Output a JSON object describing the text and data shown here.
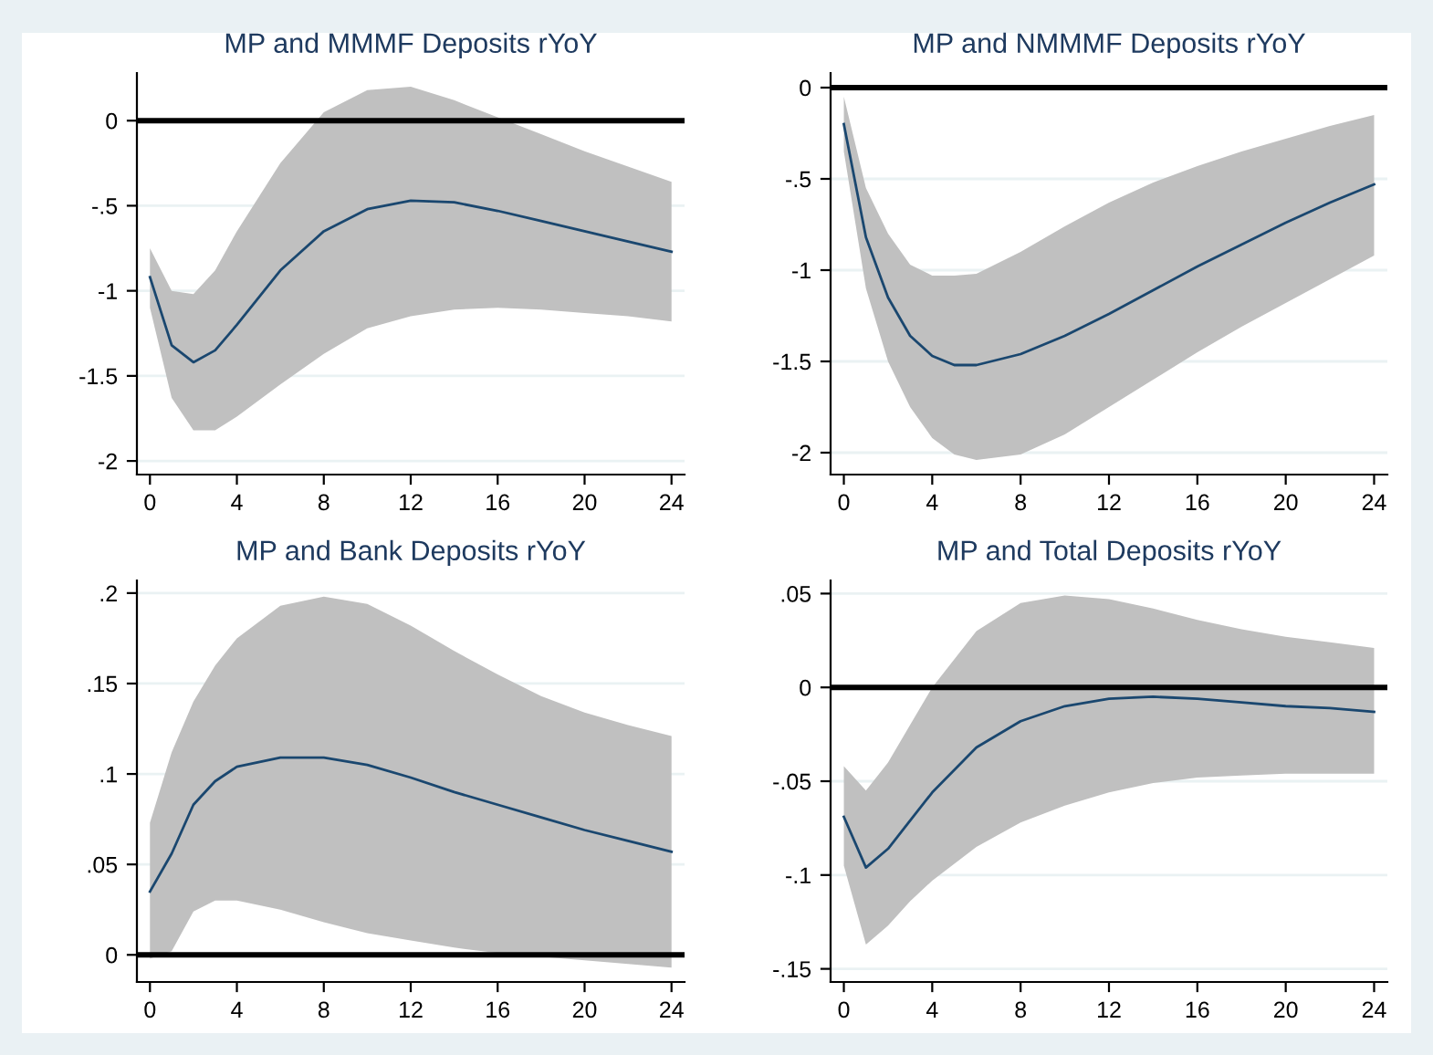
{
  "chart_data": [
    {
      "type": "line",
      "title": "MP and MMMF Deposits rYoY",
      "xlim": [
        -0.6,
        24.6
      ],
      "xticks": [
        0,
        4,
        8,
        12,
        16,
        20,
        24
      ],
      "ylim": [
        -2.08,
        0.28
      ],
      "yticks": [
        {
          "value": -2,
          "label": "-2"
        },
        {
          "value": -1.5,
          "label": "-1.5"
        },
        {
          "value": -1,
          "label": "-1"
        },
        {
          "value": -0.5,
          "label": "-.5"
        },
        0
      ],
      "grid": "y",
      "ref_lines": [
        {
          "axis": "y",
          "value": 0,
          "color": "#000000"
        }
      ],
      "series": [
        {
          "color": "#1a476f",
          "x": [
            0,
            1,
            2,
            3,
            4,
            6,
            8,
            10,
            12,
            14,
            16,
            18,
            20,
            22,
            24
          ],
          "values": [
            -0.92,
            -1.32,
            -1.42,
            -1.35,
            -1.2,
            -0.88,
            -0.65,
            -0.52,
            -0.47,
            -0.48,
            -0.53,
            -0.59,
            -0.65,
            -0.71,
            -0.77
          ],
          "upper": [
            -0.75,
            -1.0,
            -1.02,
            -0.88,
            -0.65,
            -0.25,
            0.05,
            0.18,
            0.2,
            0.12,
            0.02,
            -0.08,
            -0.18,
            -0.27,
            -0.36
          ],
          "lower": [
            -1.1,
            -1.63,
            -1.82,
            -1.82,
            -1.74,
            -1.55,
            -1.37,
            -1.22,
            -1.15,
            -1.11,
            -1.1,
            -1.11,
            -1.13,
            -1.15,
            -1.18
          ]
        }
      ]
    },
    {
      "type": "line",
      "title": "MP and NMMMF Deposits rYoY",
      "xlim": [
        -0.6,
        24.6
      ],
      "xticks": [
        0,
        4,
        8,
        12,
        16,
        20,
        24
      ],
      "ylim": [
        -2.12,
        0.08
      ],
      "yticks": [
        {
          "value": -2,
          "label": "-2"
        },
        {
          "value": -1.5,
          "label": "-1.5"
        },
        {
          "value": -1,
          "label": "-1"
        },
        {
          "value": -0.5,
          "label": "-.5"
        },
        0
      ],
      "grid": "y",
      "ref_lines": [
        {
          "axis": "y",
          "value": 0,
          "color": "#000000"
        }
      ],
      "series": [
        {
          "color": "#1a476f",
          "x": [
            0,
            1,
            2,
            3,
            4,
            5,
            6,
            8,
            10,
            12,
            14,
            16,
            18,
            20,
            22,
            24
          ],
          "values": [
            -0.2,
            -0.82,
            -1.15,
            -1.36,
            -1.47,
            -1.52,
            -1.52,
            -1.46,
            -1.36,
            -1.24,
            -1.11,
            -0.98,
            -0.86,
            -0.74,
            -0.63,
            -0.53
          ],
          "upper": [
            -0.05,
            -0.55,
            -0.8,
            -0.97,
            -1.03,
            -1.03,
            -1.02,
            -0.9,
            -0.76,
            -0.63,
            -0.52,
            -0.43,
            -0.35,
            -0.28,
            -0.21,
            -0.15
          ],
          "lower": [
            -0.35,
            -1.1,
            -1.5,
            -1.75,
            -1.92,
            -2.01,
            -2.04,
            -2.01,
            -1.9,
            -1.75,
            -1.6,
            -1.45,
            -1.31,
            -1.18,
            -1.05,
            -0.92
          ]
        }
      ]
    },
    {
      "type": "line",
      "title": "MP and Bank Deposits rYoY",
      "xlim": [
        -0.6,
        24.6
      ],
      "xticks": [
        0,
        4,
        8,
        12,
        16,
        20,
        24
      ],
      "ylim": [
        -0.015,
        0.207
      ],
      "yticks": [
        0,
        {
          "value": 0.05,
          "label": ".05"
        },
        {
          "value": 0.1,
          "label": ".1"
        },
        {
          "value": 0.15,
          "label": ".15"
        },
        {
          "value": 0.2,
          "label": ".2"
        }
      ],
      "grid": "y",
      "ref_lines": [
        {
          "axis": "y",
          "value": 0,
          "color": "#000000"
        }
      ],
      "series": [
        {
          "color": "#1a476f",
          "x": [
            0,
            1,
            2,
            3,
            4,
            6,
            8,
            10,
            12,
            14,
            16,
            18,
            20,
            22,
            24
          ],
          "values": [
            0.035,
            0.056,
            0.083,
            0.096,
            0.104,
            0.109,
            0.109,
            0.105,
            0.098,
            0.09,
            0.083,
            0.076,
            0.069,
            0.063,
            0.057
          ],
          "upper": [
            0.073,
            0.112,
            0.14,
            0.16,
            0.175,
            0.193,
            0.198,
            0.194,
            0.182,
            0.168,
            0.155,
            0.143,
            0.134,
            0.127,
            0.121
          ],
          "lower": [
            -0.002,
            0.002,
            0.024,
            0.03,
            0.03,
            0.025,
            0.018,
            0.012,
            0.008,
            0.004,
            0.001,
            -0.001,
            -0.003,
            -0.005,
            -0.007
          ]
        }
      ]
    },
    {
      "type": "line",
      "title": "MP and Total Deposits rYoY",
      "xlim": [
        -0.6,
        24.6
      ],
      "xticks": [
        0,
        4,
        8,
        12,
        16,
        20,
        24
      ],
      "ylim": [
        -0.157,
        0.057
      ],
      "yticks": [
        {
          "value": -0.15,
          "label": "-.15"
        },
        {
          "value": -0.1,
          "label": "-.1"
        },
        {
          "value": -0.05,
          "label": "-.05"
        },
        0,
        {
          "value": 0.05,
          "label": ".05"
        }
      ],
      "grid": "y",
      "ref_lines": [
        {
          "axis": "y",
          "value": 0,
          "color": "#000000"
        }
      ],
      "series": [
        {
          "color": "#1a476f",
          "x": [
            0,
            1,
            2,
            3,
            4,
            6,
            8,
            10,
            12,
            14,
            16,
            18,
            20,
            22,
            24
          ],
          "values": [
            -0.069,
            -0.096,
            -0.086,
            -0.071,
            -0.056,
            -0.032,
            -0.018,
            -0.01,
            -0.006,
            -0.005,
            -0.006,
            -0.008,
            -0.01,
            -0.011,
            -0.013
          ],
          "upper": [
            -0.042,
            -0.055,
            -0.04,
            -0.02,
            0.0,
            0.03,
            0.045,
            0.049,
            0.047,
            0.042,
            0.036,
            0.031,
            0.027,
            0.024,
            0.021
          ],
          "lower": [
            -0.095,
            -0.137,
            -0.127,
            -0.114,
            -0.103,
            -0.085,
            -0.072,
            -0.063,
            -0.056,
            -0.051,
            -0.048,
            -0.047,
            -0.046,
            -0.046,
            -0.046
          ]
        }
      ]
    }
  ]
}
